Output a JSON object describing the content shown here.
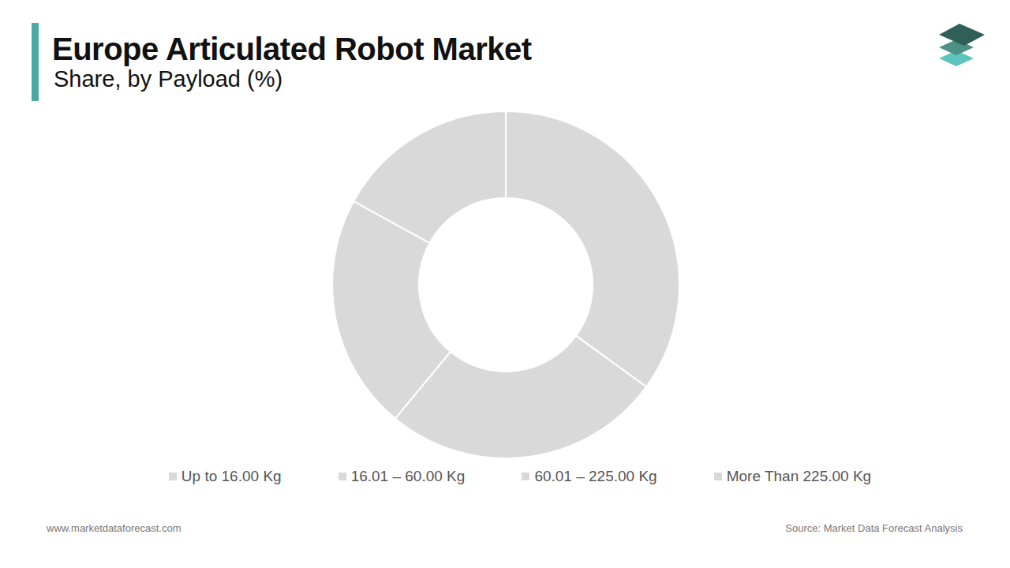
{
  "chart_data": {
    "type": "doughnut",
    "title": "Europe Articulated Robot Market",
    "subtitle": "Share, by Payload (%)",
    "categories": [
      "Up to 16.00 Kg",
      "16.01 – 60.00 Kg",
      "60.01 – 225.00 Kg",
      "More Than 225.00 Kg"
    ],
    "values": [
      35,
      26,
      22,
      17
    ],
    "colors": [
      "#d9d9d9",
      "#d9d9d9",
      "#d9d9d9",
      "#d9d9d9"
    ],
    "legend": "bottom",
    "data_labels": false,
    "annotations": [
      "www.marketdataforecast.com",
      "Source: Market Data Forecast Analysis"
    ]
  }
}
